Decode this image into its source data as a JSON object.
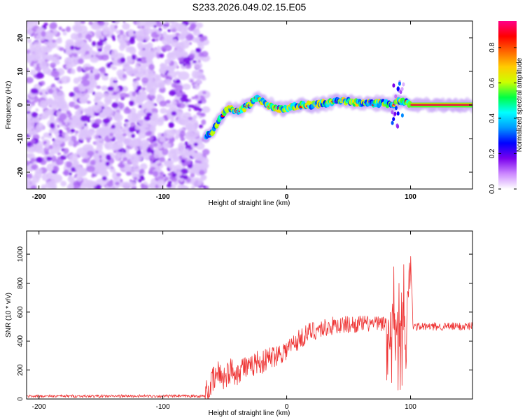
{
  "title": "S233.2026.049.02.15.E05",
  "chart_data": [
    {
      "type": "heatmap",
      "xlabel": "Height of straight line (km)",
      "ylabel": "Frequency (Hz)",
      "xlim": [
        -210,
        150
      ],
      "ylim": [
        -25,
        25
      ],
      "xticks": [
        -200,
        -100,
        0,
        100
      ],
      "yticks": [
        -20,
        -10,
        0,
        10,
        20
      ],
      "noise_region_x": [
        -210,
        -65
      ],
      "ridge": [
        {
          "x": -65,
          "y": -9
        },
        {
          "x": -60,
          "y": -8
        },
        {
          "x": -55,
          "y": -5
        },
        {
          "x": -50,
          "y": -2
        },
        {
          "x": -45,
          "y": -1
        },
        {
          "x": -40,
          "y": -2
        },
        {
          "x": -35,
          "y": -1
        },
        {
          "x": -30,
          "y": 0
        },
        {
          "x": -25,
          "y": 2
        },
        {
          "x": -20,
          "y": 1
        },
        {
          "x": -15,
          "y": 0
        },
        {
          "x": -10,
          "y": -1
        },
        {
          "x": -5,
          "y": -1
        },
        {
          "x": 0,
          "y": -1
        },
        {
          "x": 10,
          "y": 0
        },
        {
          "x": 20,
          "y": 0
        },
        {
          "x": 30,
          "y": 0.5
        },
        {
          "x": 40,
          "y": 1
        },
        {
          "x": 50,
          "y": 1
        },
        {
          "x": 60,
          "y": 0.5
        },
        {
          "x": 70,
          "y": 0.5
        },
        {
          "x": 80,
          "y": 0.5
        },
        {
          "x": 85,
          "y": 0
        },
        {
          "x": 90,
          "y": 1
        },
        {
          "x": 95,
          "y": 1
        },
        {
          "x": 100,
          "y": 0
        },
        {
          "x": 150,
          "y": 0
        }
      ],
      "colorbar": {
        "label": "Normalized spectral amplitude",
        "range": [
          0,
          0.95
        ],
        "ticks": [
          "0.0",
          "0.2",
          "0.4",
          "0.6",
          "0.8"
        ],
        "tick_values": [
          0.0,
          0.2,
          0.4,
          0.6,
          0.8
        ],
        "colors": [
          "#ffffff",
          "#cc88ff",
          "#7a00ee",
          "#0000ff",
          "#0099ff",
          "#00ffff",
          "#00ff44",
          "#ccff00",
          "#ffcc00",
          "#ff6600",
          "#ff0000",
          "#ff0088"
        ]
      }
    },
    {
      "type": "line",
      "xlabel": "Height of straight line (km)",
      "ylabel": "SNR (10 * v/v)",
      "xlim": [
        -210,
        150
      ],
      "ylim": [
        0,
        1160
      ],
      "xticks": [
        -200,
        -100,
        0,
        100
      ],
      "yticks": [
        0,
        200,
        400,
        600,
        800,
        1000
      ],
      "color": "#ee3333",
      "series": [
        {
          "name": "SNR",
          "x": [
            -210,
            -150,
            -100,
            -66,
            -63,
            -60,
            -55,
            -50,
            -45,
            -40,
            -35,
            -30,
            -25,
            -20,
            -15,
            -10,
            -5,
            0,
            5,
            10,
            15,
            20,
            25,
            30,
            35,
            40,
            45,
            50,
            55,
            60,
            65,
            70,
            75,
            80,
            82,
            84,
            86,
            88,
            90,
            92,
            94,
            96,
            98,
            100,
            102,
            105,
            110,
            120,
            130,
            140,
            150
          ],
          "y": [
            20,
            20,
            20,
            20,
            60,
            120,
            180,
            150,
            200,
            180,
            230,
            200,
            260,
            250,
            280,
            300,
            320,
            340,
            380,
            410,
            440,
            470,
            480,
            490,
            500,
            510,
            510,
            515,
            515,
            520,
            520,
            520,
            520,
            520,
            500,
            480,
            560,
            420,
            620,
            400,
            700,
            300,
            800,
            1000,
            500,
            500,
            500,
            500,
            500,
            500,
            505
          ]
        }
      ]
    }
  ]
}
